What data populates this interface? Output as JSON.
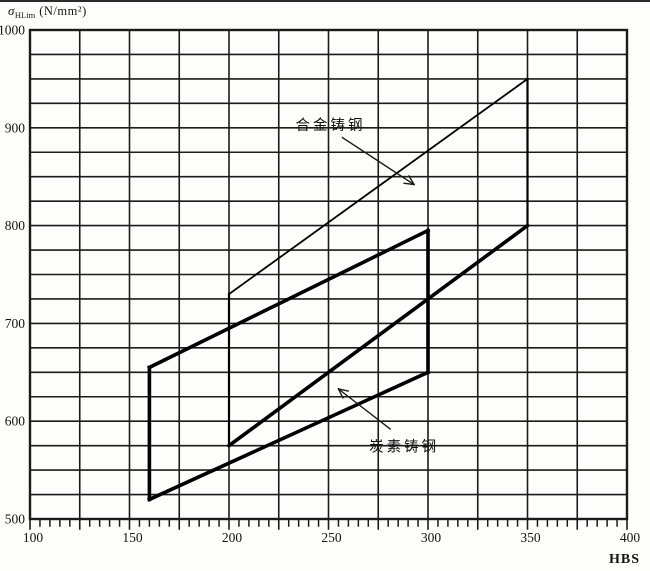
{
  "page": {
    "background": "#fdfdfc",
    "ink": "#1b1b1b",
    "band_ink": "#000000"
  },
  "chart_data": {
    "type": "line",
    "title": "",
    "ylabel": {
      "symbol": "σ",
      "subscript": "HLim",
      "units": "(N/mm²)"
    },
    "xlabel": "HBS",
    "x_axis": {
      "min": 100,
      "max": 400,
      "grid_step": 25,
      "minor_tick_step": 5,
      "labels": [
        100,
        150,
        200,
        250,
        300,
        350,
        400
      ]
    },
    "y_axis": {
      "min": 500,
      "max": 1000,
      "grid_step": 25,
      "labels": [
        1000,
        900,
        800,
        700,
        600,
        500
      ]
    },
    "grid": true,
    "legend_position": "none",
    "bands": [
      {
        "name": "alloy-cast-steel",
        "label": "合金铸钢",
        "points": [
          [
            200,
            575
          ],
          [
            200,
            730
          ],
          [
            350,
            950
          ],
          [
            350,
            800
          ]
        ],
        "edge_widths": [
          2.2,
          1.8,
          2.2,
          3.6
        ]
      },
      {
        "name": "carbon-cast-steel",
        "label": "炭素铸钢",
        "points": [
          [
            160,
            520
          ],
          [
            160,
            655
          ],
          [
            300,
            795
          ],
          [
            300,
            650
          ]
        ],
        "edge_widths": [
          3.6,
          3.6,
          3.6,
          3.6
        ]
      }
    ],
    "annotations": [
      {
        "name": "alloy-label",
        "text": "合金铸钢",
        "at": [
          251,
          903
        ],
        "leader": {
          "from": [
            257,
            890
          ],
          "to": [
            293,
            842
          ]
        }
      },
      {
        "name": "carbon-label",
        "text": "炭素铸钢",
        "at": [
          288,
          574
        ],
        "leader": {
          "from": [
            281,
            592
          ],
          "to": [
            255,
            633
          ]
        }
      }
    ]
  }
}
